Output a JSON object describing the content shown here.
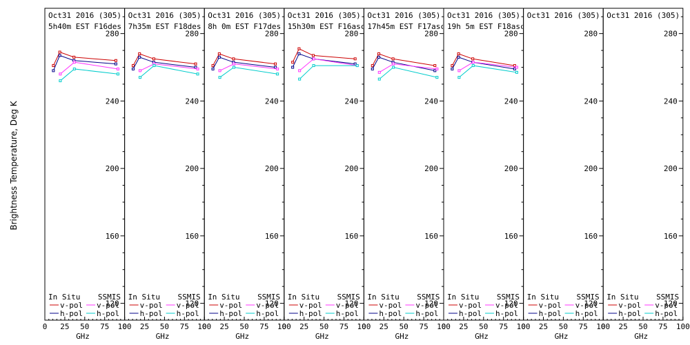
{
  "figure": {
    "ylabel": "Brightness Temperature, Deg K",
    "xlabel": "GHz",
    "colors": {
      "insitu_vpol": "#cc0000",
      "insitu_hpol": "#000088",
      "ssmis_vpol": "#ff33ff",
      "ssmis_hpol": "#00cccc"
    }
  },
  "chart_data": [
    {
      "type": "line",
      "title": "Oct31 2016 (305)",
      "subtitle": "5h40m EST F16des",
      "xlabel": "GHz",
      "ylabel": "Brightness Temperature, Deg K",
      "xlim": [
        0,
        100
      ],
      "ylim": [
        110,
        295
      ],
      "xticks": [
        "0",
        "25",
        "50",
        "75",
        "100"
      ],
      "yticks": [
        "120",
        "160",
        "200",
        "240",
        "280"
      ],
      "legend": {
        "col1": "In Situ",
        "col2": "SSMIS",
        "vpol": "v-pol",
        "hpol": "h-pol",
        "placement": "bottom"
      },
      "series": [
        {
          "key": "insitu_vpol",
          "x": [
            10.7,
            18.7,
            36.5,
            89
          ],
          "y": [
            261,
            269,
            266,
            264
          ]
        },
        {
          "key": "insitu_hpol",
          "x": [
            10.7,
            18.7,
            36.5,
            89
          ],
          "y": [
            258,
            267,
            264,
            262
          ]
        },
        {
          "key": "ssmis_vpol",
          "x": [
            19.35,
            37,
            91.65
          ],
          "y": [
            256,
            263,
            259
          ]
        },
        {
          "key": "ssmis_hpol",
          "x": [
            19.35,
            37,
            91.65
          ],
          "y": [
            252,
            259,
            256
          ]
        }
      ]
    },
    {
      "type": "line",
      "title": "Oct31 2016 (305)",
      "subtitle": "7h35m EST F18des",
      "xlabel": "GHz",
      "ylabel": "Brightness Temperature, Deg K",
      "xlim": [
        0,
        100
      ],
      "ylim": [
        110,
        295
      ],
      "xticks": [
        "0",
        "25",
        "50",
        "75",
        "100"
      ],
      "yticks": [
        "120",
        "160",
        "200",
        "240",
        "280"
      ],
      "legend": {
        "col1": "In Situ",
        "col2": "SSMIS",
        "vpol": "v-pol",
        "hpol": "h-pol",
        "placement": "bottom"
      },
      "series": [
        {
          "key": "insitu_vpol",
          "x": [
            10.7,
            18.7,
            36.5,
            89
          ],
          "y": [
            261,
            268,
            265,
            262
          ]
        },
        {
          "key": "insitu_hpol",
          "x": [
            10.7,
            18.7,
            36.5,
            89
          ],
          "y": [
            259,
            266,
            263,
            260
          ]
        },
        {
          "key": "ssmis_vpol",
          "x": [
            19.35,
            37,
            91.65
          ],
          "y": [
            258,
            262,
            259
          ]
        },
        {
          "key": "ssmis_hpol",
          "x": [
            19.35,
            37,
            91.65
          ],
          "y": [
            254,
            261,
            256
          ]
        }
      ]
    },
    {
      "type": "line",
      "title": "Oct31 2016 (305)",
      "subtitle": "8h 0m EST F17des",
      "xlabel": "GHz",
      "ylabel": "Brightness Temperature, Deg K",
      "xlim": [
        0,
        100
      ],
      "ylim": [
        110,
        295
      ],
      "xticks": [
        "0",
        "25",
        "50",
        "75",
        "100"
      ],
      "yticks": [
        "120",
        "160",
        "200",
        "240",
        "280"
      ],
      "legend": {
        "col1": "In Situ",
        "col2": "SSMIS",
        "vpol": "v-pol",
        "hpol": "h-pol",
        "placement": "bottom"
      },
      "series": [
        {
          "key": "insitu_vpol",
          "x": [
            10.7,
            18.7,
            36.5,
            89
          ],
          "y": [
            261,
            268,
            265,
            262
          ]
        },
        {
          "key": "insitu_hpol",
          "x": [
            10.7,
            18.7,
            36.5,
            89
          ],
          "y": [
            259,
            266,
            263,
            260
          ]
        },
        {
          "key": "ssmis_vpol",
          "x": [
            19.35,
            37,
            91.65
          ],
          "y": [
            258,
            262,
            259
          ]
        },
        {
          "key": "ssmis_hpol",
          "x": [
            19.35,
            37,
            91.65
          ],
          "y": [
            254,
            260,
            256
          ]
        }
      ]
    },
    {
      "type": "line",
      "title": "Oct31 2016 (305)",
      "subtitle": "15h30m EST F16asc",
      "xlabel": "GHz",
      "ylabel": "Brightness Temperature, Deg K",
      "xlim": [
        0,
        100
      ],
      "ylim": [
        110,
        295
      ],
      "xticks": [
        "0",
        "25",
        "50",
        "75",
        "100"
      ],
      "yticks": [
        "120",
        "160",
        "200",
        "240",
        "280"
      ],
      "legend": {
        "col1": "In Situ",
        "col2": "SSMIS",
        "vpol": "v-pol",
        "hpol": "h-pol",
        "placement": "bottom"
      },
      "series": [
        {
          "key": "insitu_vpol",
          "x": [
            10.7,
            18.7,
            36.5,
            89
          ],
          "y": [
            263,
            271,
            267,
            265
          ]
        },
        {
          "key": "insitu_hpol",
          "x": [
            10.7,
            18.7,
            36.5,
            89
          ],
          "y": [
            260,
            268,
            265,
            262
          ]
        },
        {
          "key": "ssmis_vpol",
          "x": [
            19.35,
            37,
            91.65
          ],
          "y": [
            258,
            265,
            261
          ]
        },
        {
          "key": "ssmis_hpol",
          "x": [
            19.35,
            37,
            91.65
          ],
          "y": [
            253,
            261,
            261
          ]
        }
      ]
    },
    {
      "type": "line",
      "title": "Oct31 2016 (305)",
      "subtitle": "17h45m EST F17asc",
      "xlabel": "GHz",
      "ylabel": "Brightness Temperature, Deg K",
      "xlim": [
        0,
        100
      ],
      "ylim": [
        110,
        295
      ],
      "xticks": [
        "0",
        "25",
        "50",
        "75",
        "100"
      ],
      "yticks": [
        "120",
        "160",
        "200",
        "240",
        "280"
      ],
      "legend": {
        "col1": "In Situ",
        "col2": "SSMIS",
        "vpol": "v-pol",
        "hpol": "h-pol",
        "placement": "bottom"
      },
      "series": [
        {
          "key": "insitu_vpol",
          "x": [
            10.7,
            18.7,
            36.5,
            89
          ],
          "y": [
            261,
            268,
            265,
            261
          ]
        },
        {
          "key": "insitu_hpol",
          "x": [
            10.7,
            18.7,
            36.5,
            89
          ],
          "y": [
            259,
            266,
            263,
            258
          ]
        },
        {
          "key": "ssmis_vpol",
          "x": [
            19.35,
            37,
            91.65
          ],
          "y": [
            257,
            262,
            259
          ]
        },
        {
          "key": "ssmis_hpol",
          "x": [
            19.35,
            37,
            91.65
          ],
          "y": [
            253,
            260,
            254
          ]
        }
      ]
    },
    {
      "type": "line",
      "title": "Oct31 2016 (305)",
      "subtitle": "19h 5m EST F18asc",
      "xlabel": "GHz",
      "ylabel": "Brightness Temperature, Deg K",
      "xlim": [
        0,
        100
      ],
      "ylim": [
        110,
        295
      ],
      "xticks": [
        "0",
        "25",
        "50",
        "75",
        "100"
      ],
      "yticks": [
        "120",
        "160",
        "200",
        "240",
        "280"
      ],
      "legend": {
        "col1": "In Situ",
        "col2": "SSMIS",
        "vpol": "v-pol",
        "hpol": "h-pol",
        "placement": "bottom"
      },
      "series": [
        {
          "key": "insitu_vpol",
          "x": [
            10.7,
            18.7,
            36.5,
            89
          ],
          "y": [
            261,
            268,
            265,
            261
          ]
        },
        {
          "key": "insitu_hpol",
          "x": [
            10.7,
            18.7,
            36.5,
            89
          ],
          "y": [
            259,
            266,
            263,
            259
          ]
        },
        {
          "key": "ssmis_vpol",
          "x": [
            19.35,
            37,
            91.65
          ],
          "y": [
            258,
            263,
            260
          ]
        },
        {
          "key": "ssmis_hpol",
          "x": [
            19.35,
            37,
            91.65
          ],
          "y": [
            254,
            261,
            257
          ]
        }
      ]
    },
    {
      "type": "line",
      "title": "Oct31 2016 (305)",
      "subtitle": "",
      "xlabel": "GHz",
      "ylabel": "Brightness Temperature, Deg K",
      "xlim": [
        0,
        100
      ],
      "ylim": [
        110,
        295
      ],
      "xticks": [
        "0",
        "25",
        "50",
        "75",
        "100"
      ],
      "yticks": [
        "120",
        "160",
        "200",
        "240",
        "280"
      ],
      "legend": {
        "col1": "In Situ",
        "col2": "SSMIS",
        "vpol": "v-pol",
        "hpol": "h-pol",
        "placement": "bottom"
      },
      "series": []
    },
    {
      "type": "line",
      "title": "Oct31 2016 (305)",
      "subtitle": "",
      "xlabel": "GHz",
      "ylabel": "Brightness Temperature, Deg K",
      "xlim": [
        0,
        100
      ],
      "ylim": [
        110,
        295
      ],
      "xticks": [
        "0",
        "25",
        "50",
        "75",
        "100"
      ],
      "yticks": [
        "120",
        "160",
        "200",
        "240",
        "280"
      ],
      "legend": {
        "col1": "In Situ",
        "col2": "SSMIS",
        "vpol": "v-pol",
        "hpol": "h-pol",
        "placement": "bottom"
      },
      "series": []
    }
  ]
}
